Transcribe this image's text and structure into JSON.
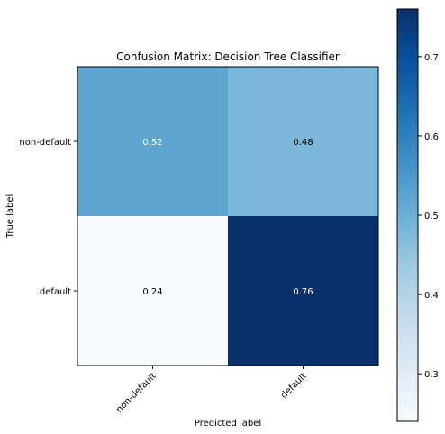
{
  "chart_data": {
    "type": "heatmap",
    "title": "Confusion Matrix: Decision Tree Classifier",
    "xlabel": "Predicted label",
    "ylabel": "True label",
    "x_categories": [
      "non-default",
      "default"
    ],
    "y_categories": [
      "non-default",
      "default"
    ],
    "values": [
      [
        0.52,
        0.48
      ],
      [
        0.24,
        0.76
      ]
    ],
    "value_labels": [
      [
        "0.52",
        "0.48"
      ],
      [
        "0.24",
        "0.76"
      ]
    ],
    "colormap": "Blues",
    "color_range": [
      0.24,
      0.76
    ],
    "colorbar_ticks": [
      "0.3",
      "0.4",
      "0.5",
      "0.6",
      "0.7"
    ],
    "colorbar_tick_values": [
      0.3,
      0.4,
      0.5,
      0.6,
      0.7
    ],
    "grid": false
  }
}
